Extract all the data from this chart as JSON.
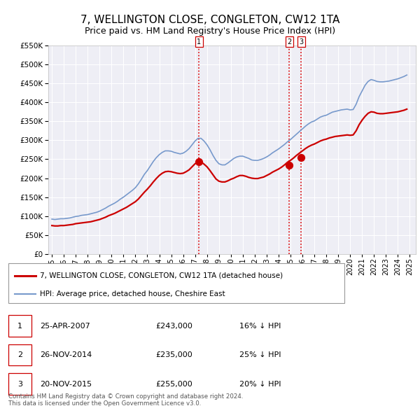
{
  "title": "7, WELLINGTON CLOSE, CONGLETON, CW12 1TA",
  "subtitle": "Price paid vs. HM Land Registry's House Price Index (HPI)",
  "title_fontsize": 11,
  "subtitle_fontsize": 9,
  "background_color": "#ffffff",
  "plot_bg_color": "#eeeef5",
  "grid_color": "#ffffff",
  "ylim": [
    0,
    550000
  ],
  "yticks": [
    0,
    50000,
    100000,
    150000,
    200000,
    250000,
    300000,
    350000,
    400000,
    450000,
    500000,
    550000
  ],
  "xlim_start": 1994.7,
  "xlim_end": 2025.5,
  "xticks": [
    1995,
    1996,
    1997,
    1998,
    1999,
    2000,
    2001,
    2002,
    2003,
    2004,
    2005,
    2006,
    2007,
    2008,
    2009,
    2010,
    2011,
    2012,
    2013,
    2014,
    2015,
    2016,
    2017,
    2018,
    2019,
    2020,
    2021,
    2022,
    2023,
    2024,
    2025
  ],
  "sale_color": "#cc0000",
  "hpi_color": "#7799cc",
  "sale_linewidth": 1.6,
  "hpi_linewidth": 1.2,
  "transaction_dates": [
    2007.32,
    2014.9,
    2015.9
  ],
  "transaction_prices": [
    243000,
    235000,
    255000
  ],
  "transaction_labels": [
    "1",
    "2",
    "3"
  ],
  "vline_color": "#dd0000",
  "dot_color": "#cc0000",
  "dot_size": 50,
  "legend_sale_label": "7, WELLINGTON CLOSE, CONGLETON, CW12 1TA (detached house)",
  "legend_hpi_label": "HPI: Average price, detached house, Cheshire East",
  "table_entries": [
    {
      "num": "1",
      "date": "25-APR-2007",
      "price": "£243,000",
      "pct": "16% ↓ HPI"
    },
    {
      "num": "2",
      "date": "26-NOV-2014",
      "price": "£235,000",
      "pct": "25% ↓ HPI"
    },
    {
      "num": "3",
      "date": "20-NOV-2015",
      "price": "£255,000",
      "pct": "20% ↓ HPI"
    }
  ],
  "footer": "Contains HM Land Registry data © Crown copyright and database right 2024.\nThis data is licensed under the Open Government Licence v3.0.",
  "hpi_data_x": [
    1995.0,
    1995.25,
    1995.5,
    1995.75,
    1996.0,
    1996.25,
    1996.5,
    1996.75,
    1997.0,
    1997.25,
    1997.5,
    1997.75,
    1998.0,
    1998.25,
    1998.5,
    1998.75,
    1999.0,
    1999.25,
    1999.5,
    1999.75,
    2000.0,
    2000.25,
    2000.5,
    2000.75,
    2001.0,
    2001.25,
    2001.5,
    2001.75,
    2002.0,
    2002.25,
    2002.5,
    2002.75,
    2003.0,
    2003.25,
    2003.5,
    2003.75,
    2004.0,
    2004.25,
    2004.5,
    2004.75,
    2005.0,
    2005.25,
    2005.5,
    2005.75,
    2006.0,
    2006.25,
    2006.5,
    2006.75,
    2007.0,
    2007.25,
    2007.5,
    2007.75,
    2008.0,
    2008.25,
    2008.5,
    2008.75,
    2009.0,
    2009.25,
    2009.5,
    2009.75,
    2010.0,
    2010.25,
    2010.5,
    2010.75,
    2011.0,
    2011.25,
    2011.5,
    2011.75,
    2012.0,
    2012.25,
    2012.5,
    2012.75,
    2013.0,
    2013.25,
    2013.5,
    2013.75,
    2014.0,
    2014.25,
    2014.5,
    2014.75,
    2015.0,
    2015.25,
    2015.5,
    2015.75,
    2016.0,
    2016.25,
    2016.5,
    2016.75,
    2017.0,
    2017.25,
    2017.5,
    2017.75,
    2018.0,
    2018.25,
    2018.5,
    2018.75,
    2019.0,
    2019.25,
    2019.5,
    2019.75,
    2020.0,
    2020.25,
    2020.5,
    2020.75,
    2021.0,
    2021.25,
    2021.5,
    2021.75,
    2022.0,
    2022.25,
    2022.5,
    2022.75,
    2023.0,
    2023.25,
    2023.5,
    2023.75,
    2024.0,
    2024.25,
    2024.5,
    2024.75
  ],
  "hpi_data_y": [
    92000,
    91000,
    92000,
    93000,
    93000,
    94000,
    95000,
    97000,
    99000,
    100000,
    102000,
    103000,
    104000,
    106000,
    108000,
    110000,
    113000,
    117000,
    121000,
    126000,
    130000,
    134000,
    139000,
    145000,
    150000,
    156000,
    162000,
    168000,
    175000,
    185000,
    197000,
    210000,
    220000,
    232000,
    244000,
    254000,
    262000,
    268000,
    272000,
    272000,
    271000,
    268000,
    266000,
    264000,
    266000,
    271000,
    278000,
    288000,
    298000,
    305000,
    305000,
    298000,
    288000,
    275000,
    260000,
    247000,
    238000,
    235000,
    235000,
    240000,
    246000,
    252000,
    256000,
    258000,
    258000,
    255000,
    252000,
    248000,
    247000,
    247000,
    249000,
    252000,
    256000,
    261000,
    267000,
    272000,
    277000,
    283000,
    289000,
    296000,
    302000,
    309000,
    316000,
    323000,
    330000,
    337000,
    343000,
    348000,
    351000,
    356000,
    361000,
    364000,
    366000,
    370000,
    374000,
    376000,
    378000,
    380000,
    381000,
    382000,
    380000,
    381000,
    395000,
    415000,
    430000,
    445000,
    455000,
    460000,
    458000,
    455000,
    454000,
    454000,
    455000,
    456000,
    458000,
    460000,
    462000,
    465000,
    468000,
    472000
  ],
  "sale_data_x": [
    1995.0,
    1995.25,
    1995.5,
    1995.75,
    1996.0,
    1996.25,
    1996.5,
    1996.75,
    1997.0,
    1997.25,
    1997.5,
    1997.75,
    1998.0,
    1998.25,
    1998.5,
    1998.75,
    1999.0,
    1999.25,
    1999.5,
    1999.75,
    2000.0,
    2000.25,
    2000.5,
    2000.75,
    2001.0,
    2001.25,
    2001.5,
    2001.75,
    2002.0,
    2002.25,
    2002.5,
    2002.75,
    2003.0,
    2003.25,
    2003.5,
    2003.75,
    2004.0,
    2004.25,
    2004.5,
    2004.75,
    2005.0,
    2005.25,
    2005.5,
    2005.75,
    2006.0,
    2006.25,
    2006.5,
    2006.75,
    2007.0,
    2007.25,
    2007.5,
    2007.75,
    2008.0,
    2008.25,
    2008.5,
    2008.75,
    2009.0,
    2009.25,
    2009.5,
    2009.75,
    2010.0,
    2010.25,
    2010.5,
    2010.75,
    2011.0,
    2011.25,
    2011.5,
    2011.75,
    2012.0,
    2012.25,
    2012.5,
    2012.75,
    2013.0,
    2013.25,
    2013.5,
    2013.75,
    2014.0,
    2014.25,
    2014.5,
    2014.75,
    2015.0,
    2015.25,
    2015.5,
    2015.75,
    2016.0,
    2016.25,
    2016.5,
    2016.75,
    2017.0,
    2017.25,
    2017.5,
    2017.75,
    2018.0,
    2018.25,
    2018.5,
    2018.75,
    2019.0,
    2019.25,
    2019.5,
    2019.75,
    2020.0,
    2020.25,
    2020.5,
    2020.75,
    2021.0,
    2021.25,
    2021.5,
    2021.75,
    2022.0,
    2022.25,
    2022.5,
    2022.75,
    2023.0,
    2023.25,
    2023.5,
    2023.75,
    2024.0,
    2024.25,
    2024.5,
    2024.75
  ],
  "sale_data_y": [
    75000,
    74000,
    74000,
    75000,
    75000,
    76000,
    77000,
    78000,
    80000,
    81000,
    82000,
    83000,
    84000,
    85000,
    87000,
    89000,
    91000,
    94000,
    97000,
    101000,
    104000,
    107000,
    111000,
    115000,
    119000,
    123000,
    128000,
    133000,
    138000,
    145000,
    154000,
    163000,
    171000,
    180000,
    190000,
    199000,
    207000,
    213000,
    217000,
    218000,
    217000,
    215000,
    213000,
    212000,
    213000,
    217000,
    222000,
    230000,
    238000,
    243000,
    243000,
    237000,
    230000,
    220000,
    209000,
    198000,
    192000,
    190000,
    190000,
    193000,
    197000,
    200000,
    204000,
    207000,
    207000,
    205000,
    202000,
    200000,
    199000,
    199000,
    201000,
    203000,
    207000,
    211000,
    216000,
    220000,
    224000,
    229000,
    235000,
    242000,
    247000,
    253000,
    260000,
    266000,
    272000,
    278000,
    283000,
    287000,
    290000,
    294000,
    298000,
    301000,
    303000,
    306000,
    308000,
    310000,
    311000,
    312000,
    313000,
    314000,
    313000,
    314000,
    325000,
    341000,
    353000,
    363000,
    371000,
    375000,
    374000,
    371000,
    370000,
    370000,
    371000,
    372000,
    373000,
    374000,
    375000,
    377000,
    379000,
    382000
  ]
}
